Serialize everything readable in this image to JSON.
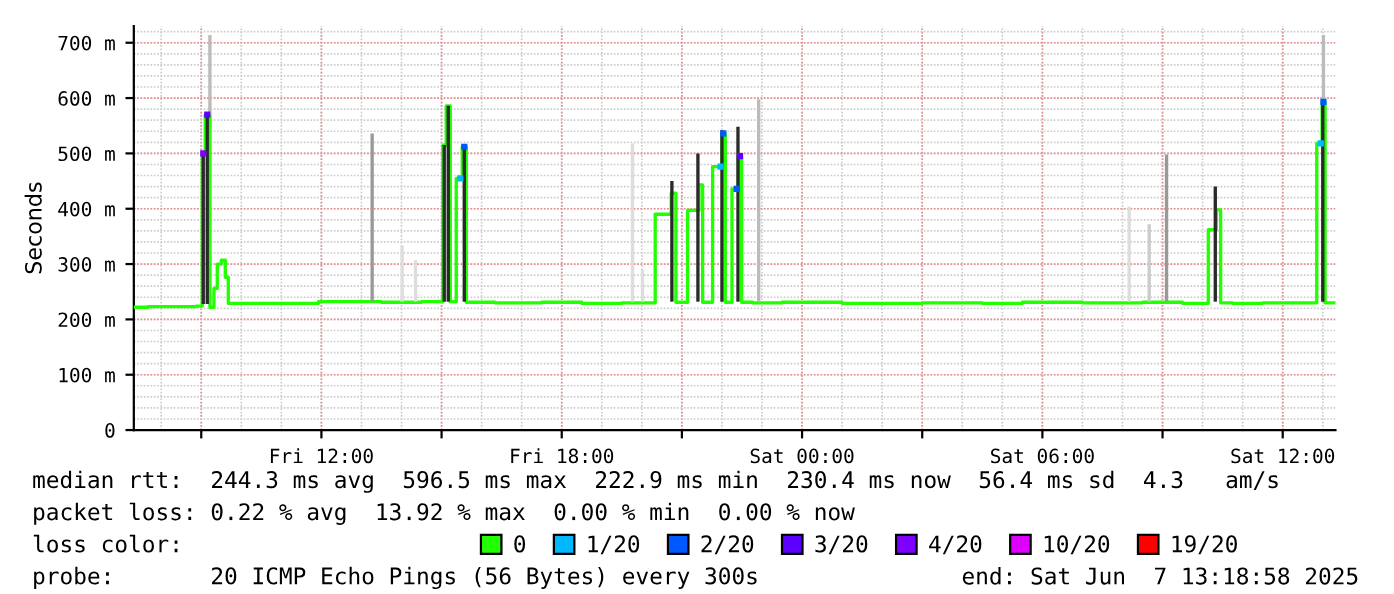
{
  "chart_data": {
    "type": "step",
    "ylabel": "Seconds",
    "legend_title": "loss color:",
    "legend": "bottom",
    "grid": true,
    "xlim": [
      "2025-06-06T07:19",
      "2025-06-07T13:19"
    ],
    "xticks": [
      {
        "value": "2025-06-06T09:00",
        "label": null
      },
      {
        "value": "2025-06-06T12:00",
        "label": "Fri 12:00"
      },
      {
        "value": "2025-06-06T15:00",
        "label": null
      },
      {
        "value": "2025-06-06T18:00",
        "label": "Fri 18:00"
      },
      {
        "value": "2025-06-06T21:00",
        "label": null
      },
      {
        "value": "2025-06-07T00:00",
        "label": "Sat 00:00"
      },
      {
        "value": "2025-06-07T03:00",
        "label": null
      },
      {
        "value": "2025-06-07T06:00",
        "label": "Sat 06:00"
      },
      {
        "value": "2025-06-07T09:00",
        "label": null
      },
      {
        "value": "2025-06-07T12:00",
        "label": "Sat 12:00"
      }
    ],
    "ylim": [
      0,
      730
    ],
    "yticks": [
      0,
      {
        "value": 100,
        "label": "100 m"
      },
      {
        "value": 200,
        "label": "200 m"
      },
      {
        "value": 300,
        "label": "300 m"
      },
      {
        "value": 400,
        "label": "400 m"
      },
      {
        "value": 500,
        "label": "500 m"
      },
      {
        "value": 600,
        "label": "600 m"
      },
      {
        "value": 700,
        "label": "700 m"
      }
    ],
    "series": [
      {
        "type": "bar",
        "x": [
          "2025-06-06T09:03",
          "2025-06-06T09:09",
          "2025-06-06T09:13",
          "2025-06-06T13:16",
          "2025-06-06T14:01",
          "2025-06-06T14:21",
          "2025-06-06T15:04",
          "2025-06-06T15:10",
          "2025-06-06T15:34",
          "2025-06-06T19:46",
          "2025-06-06T20:01",
          "2025-06-06T20:45",
          "2025-06-06T21:24",
          "2025-06-06T22:00",
          "2025-06-06T22:24",
          "2025-06-06T22:55",
          "2025-06-07T08:10",
          "2025-06-07T08:40",
          "2025-06-07T09:06",
          "2025-06-07T10:19",
          "2025-06-07T13:00",
          "2025-06-07T13:01"
        ],
        "base": [
          228,
          228,
          570,
          232,
          232,
          232,
          232,
          232,
          232,
          232,
          232,
          232,
          232,
          232,
          232,
          232,
          232,
          232,
          232,
          232,
          232,
          598
        ],
        "values": [
          272,
          342,
          144,
          304,
          101,
          75,
          283,
          354,
          280,
          286,
          58,
          218,
          268,
          310,
          316,
          366,
          172,
          140,
          266,
          208,
          366,
          116
        ],
        "colors": [
          "#2a2a2a",
          "#2a2a2a",
          "#bbbbbb",
          "#999999",
          "#dddddd",
          "#dddddd",
          "#2a2a2a",
          "#2a2a2a",
          "#2a2a2a",
          "#dddddd",
          "#dddddd",
          "#2a2a2a",
          "#2a2a2a",
          "#2a2a2a",
          "#2a2a2a",
          "#bbbbbb",
          "#dddddd",
          "#cccccc",
          "#999999",
          "#2a2a2a",
          "#2a2a2a",
          "#bbbbbb"
        ]
      },
      {
        "name": "0",
        "color": "#22ff00",
        "x": [
          "2025-06-06T07:21",
          "2025-06-06T08:00",
          "2025-06-06T08:45",
          "2025-06-06T09:00",
          "2025-06-06T09:03",
          "2025-06-06T09:09",
          "2025-06-06T09:17",
          "2025-06-06T09:21",
          "2025-06-06T09:27",
          "2025-06-06T09:33",
          "2025-06-06T09:39",
          "2025-06-06T09:42",
          "2025-06-06T10:30",
          "2025-06-06T11:30",
          "2025-06-06T12:21",
          "2025-06-06T13:00",
          "2025-06-06T14:00",
          "2025-06-06T15:00",
          "2025-06-06T15:04",
          "2025-06-06T15:10",
          "2025-06-06T15:16",
          "2025-06-06T15:28",
          "2025-06-06T15:34",
          "2025-06-06T15:40",
          "2025-06-06T17:00",
          "2025-06-06T18:00",
          "2025-06-06T19:00",
          "2025-06-06T20:00",
          "2025-06-06T20:40",
          "2025-06-06T20:48",
          "2025-06-06T20:54",
          "2025-06-06T21:23",
          "2025-06-06T21:28",
          "2025-06-06T21:34",
          "2025-06-06T21:58",
          "2025-06-06T22:02",
          "2025-06-06T22:08",
          "2025-06-06T22:22",
          "2025-06-06T22:27",
          "2025-06-06T22:32",
          "2025-06-06T23:00",
          "2025-06-07T00:00",
          "2025-06-07T02:00",
          "2025-06-07T04:00",
          "2025-06-07T05:00",
          "2025-06-07T06:00",
          "2025-06-07T08:00",
          "2025-06-07T09:00",
          "2025-06-07T10:00",
          "2025-06-07T10:17",
          "2025-06-07T10:24",
          "2025-06-07T10:30",
          "2025-06-07T11:00",
          "2025-06-07T12:00",
          "2025-06-07T12:45",
          "2025-06-07T12:57",
          "2025-06-07T13:01",
          "2025-06-07T13:06",
          "2025-06-07T13:18"
        ],
        "values": [
          222,
          223,
          223,
          224,
          500,
          570,
          222,
          256,
          300,
          307,
          276,
          229,
          229,
          229,
          232,
          232,
          231,
          232,
          515,
          586,
          232,
          455,
          512,
          231,
          230,
          231,
          229,
          230,
          390,
          428,
          231,
          397,
          443,
          231,
          476,
          536,
          231,
          436,
          495,
          231,
          230,
          231,
          229,
          230,
          229,
          231,
          230,
          231,
          229,
          362,
          398,
          230,
          229,
          230,
          230,
          518,
          593,
          230,
          230
        ]
      },
      {
        "type": "scatter",
        "name": "1/20",
        "color": "#00b8ff",
        "x": [
          "2025-06-06T15:28",
          "2025-06-06T21:58",
          "2025-06-07T12:57"
        ],
        "values": [
          455,
          476,
          518
        ]
      },
      {
        "type": "scatter",
        "name": "2/20",
        "color": "#0059ff",
        "x": [
          "2025-06-06T15:34",
          "2025-06-06T22:02",
          "2025-06-06T22:22",
          "2025-06-07T13:01"
        ],
        "values": [
          512,
          536,
          436,
          593
        ]
      },
      {
        "type": "scatter",
        "name": "3/20",
        "color": "#5e00ff",
        "x": [
          "2025-06-06T09:09",
          "2025-06-06T22:27"
        ],
        "values": [
          570,
          495
        ]
      },
      {
        "type": "scatter",
        "name": "4/20",
        "color": "#7e00ff",
        "x": [
          "2025-06-06T09:03"
        ],
        "values": [
          500
        ]
      },
      {
        "type": "scatter",
        "name": "10/20",
        "color": "#dd00ff"
      },
      {
        "type": "scatter",
        "name": "19/20",
        "color": "#ff0000"
      }
    ],
    "annotations": [
      "median rtt:  244.3 ms avg  596.5 ms max  222.9 ms min  230.4 ms now  56.4 ms sd  4.3   am/s",
      "packet loss: 0.22 % avg  13.92 % max  0.00 % min  0.00 % now",
      "probe:       20 ICMP Echo Pings (56 Bytes) every 300s",
      "end: Sat Jun  7 13:18:58 2025"
    ]
  }
}
